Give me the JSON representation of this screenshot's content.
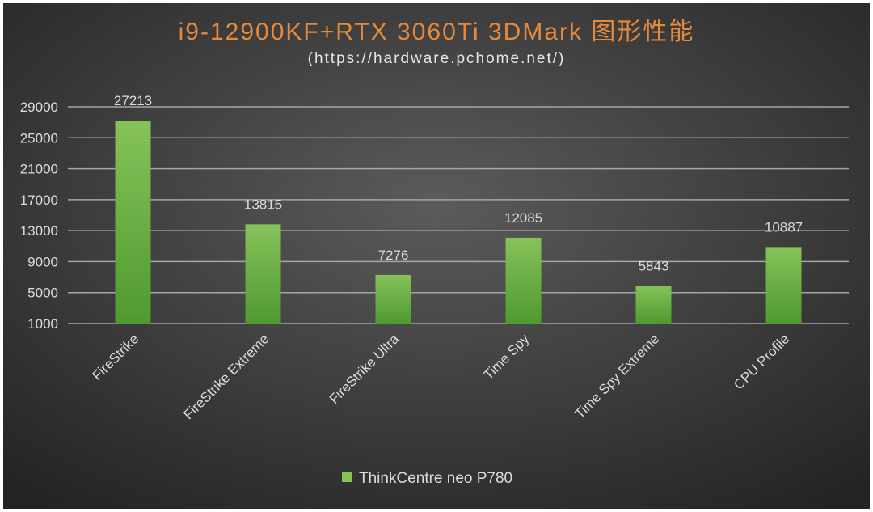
{
  "chart_data": {
    "type": "bar",
    "title": "i9-12900KF+RTX 3060Ti 3DMark 图形性能",
    "subtitle": "(https://hardware.pchome.net/)",
    "categories": [
      "FireStrike",
      "FireStrike Extreme",
      "FireStrike Ultra",
      "Time Spy",
      "Time Spy Extreme",
      "CPU Profile"
    ],
    "series": [
      {
        "name": "ThinkCentre neo P780",
        "values": [
          27213,
          13815,
          7276,
          12085,
          5843,
          10887
        ]
      }
    ],
    "yticks": [
      "1000",
      "5000",
      "9000",
      "13000",
      "17000",
      "21000",
      "25000",
      "29000"
    ],
    "ylim": [
      1000,
      29000
    ],
    "xlabel": "",
    "ylabel": "",
    "grid": true,
    "legend_position": "bottom"
  },
  "colors": {
    "background_center": "#5b5b5b",
    "background_edge": "#232323",
    "title": "#e58a3c",
    "subtitle": "#e6e6e6",
    "bar_top": "#86c25a",
    "bar_bottom": "#4f9a30",
    "gridline": "#a6a6a6",
    "text": "#dcdcdc"
  }
}
